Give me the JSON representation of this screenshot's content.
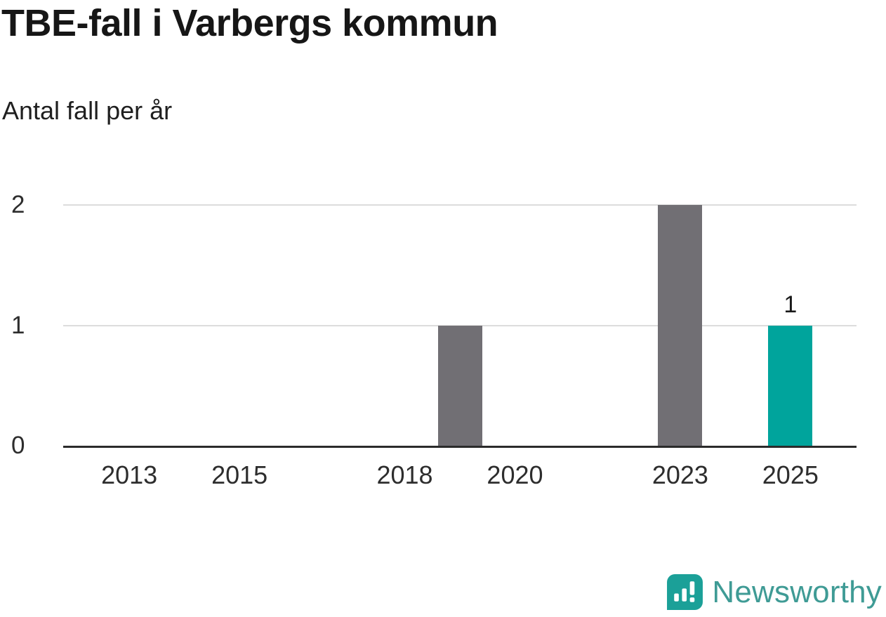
{
  "title": "TBE-fall i Varbergs kommun",
  "subtitle": "Antal fall per år",
  "branding": {
    "logo_text": "Newsworthy",
    "logo_color": "#3f9b95",
    "icon_color": "#1ba098"
  },
  "chart_data": {
    "type": "bar",
    "title": "TBE-fall i Varbergs kommun",
    "subtitle": "Antal fall per år",
    "ylabel": "Antal fall per år",
    "xlabel": "",
    "x": [
      2019,
      2023,
      2025
    ],
    "values": [
      1,
      2,
      1
    ],
    "bar_colors": [
      "#716f74",
      "#716f74",
      "#00a49c"
    ],
    "highlight_x": 2025,
    "data_labels": [
      {
        "x": 2025,
        "text": "1"
      }
    ],
    "x_ticks": [
      2013,
      2015,
      2018,
      2020,
      2023,
      2025
    ],
    "y_ticks": [
      0,
      1,
      2
    ],
    "xlim": [
      2011.8,
      2026.2
    ],
    "ylim": [
      0,
      2
    ],
    "grid": true,
    "legend": "none",
    "colors": {
      "bar_default": "#716f74",
      "bar_highlight": "#00a49c",
      "gridline": "#dcdcdc",
      "axis": "#2b2b2b",
      "text": "#2d2d2d"
    }
  }
}
